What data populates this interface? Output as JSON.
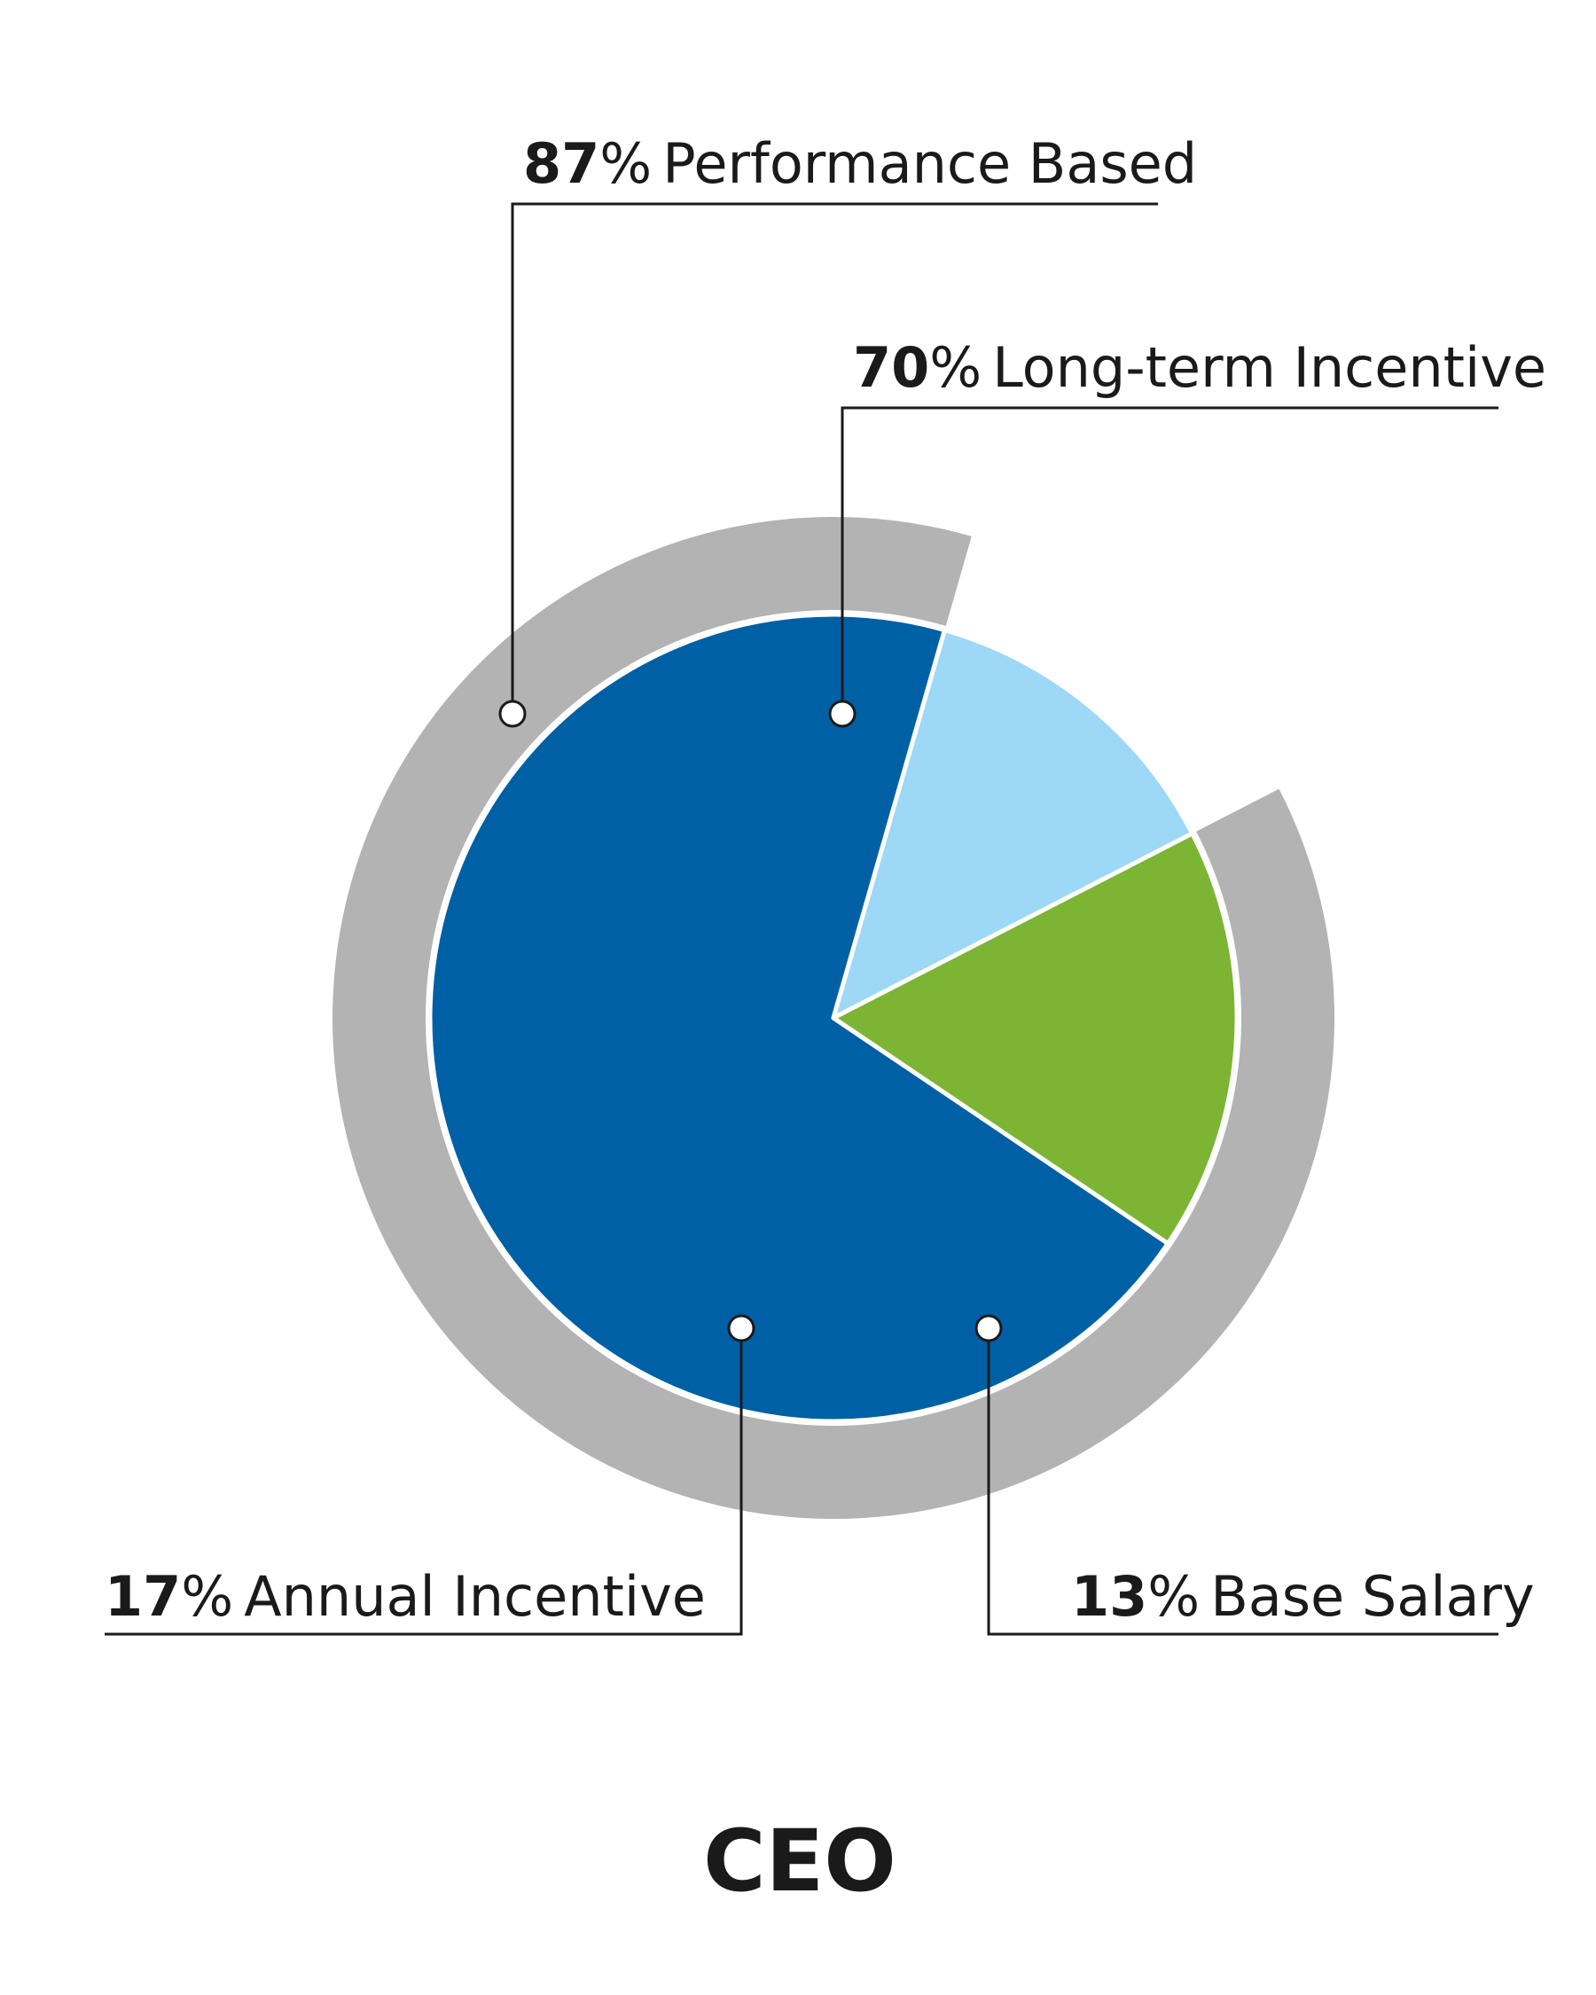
{
  "chart_data": {
    "type": "pie",
    "title": "CEO",
    "slices": [
      {
        "name": "Long-term Incentive",
        "value": 70,
        "value_label": "70",
        "color": "#0060a5"
      },
      {
        "name": "Base Salary",
        "value": 13,
        "value_label": "13",
        "color": "#9dd8f7"
      },
      {
        "name": "Annual Incentive",
        "value": 17,
        "value_label": "17",
        "color": "#7cb434"
      }
    ],
    "outer_ring": {
      "name": "Performance Based",
      "value": 87,
      "value_label": "87",
      "color": "#b3b3b3"
    },
    "percent_sign": "%"
  }
}
